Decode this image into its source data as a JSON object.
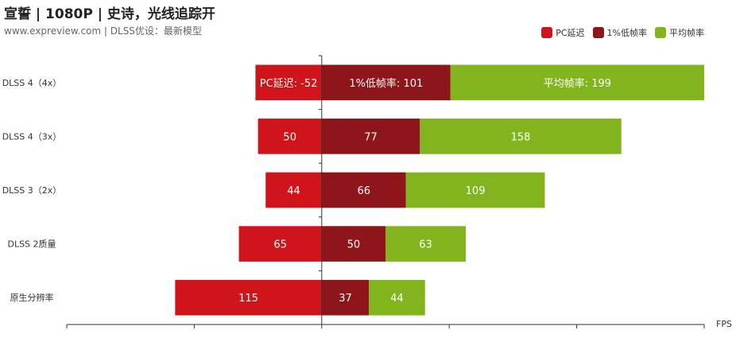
{
  "title": "宣誓 | 1080P | 史诗，光线追踪开",
  "subtitle_site": "www.expreview.com",
  "subtitle_note": "| DLSS优设：最新模型",
  "x_unit": "FPS",
  "colors": {
    "latency": "#d0141b",
    "low": "#8e1519",
    "avg": "#82b41e"
  },
  "chart_data": {
    "type": "bar",
    "orientation": "horizontal",
    "stacked": true,
    "categories": [
      "DLSS 4（4x）",
      "DLSS 4（3x）",
      "DLSS 3（2x）",
      "DLSS 2质量",
      "原生分辨率"
    ],
    "series": [
      {
        "name": "PC延迟",
        "values": [
          -52,
          -50,
          -44,
          -65,
          -115
        ],
        "labels": [
          "PC延迟: -52",
          "50",
          "44",
          "65",
          "115"
        ]
      },
      {
        "name": "1%低帧率",
        "values": [
          101,
          77,
          66,
          50,
          37
        ],
        "labels": [
          "1%低帧率: 101",
          "77",
          "66",
          "50",
          "37"
        ]
      },
      {
        "name": "平均帧率",
        "values": [
          199,
          158,
          109,
          63,
          44
        ],
        "labels": [
          "平均帧率: 199",
          "158",
          "109",
          "63",
          "44"
        ]
      }
    ],
    "xlabel": "FPS",
    "xlim": [
      -200,
      300
    ],
    "legend": "top-right",
    "grid": false
  }
}
